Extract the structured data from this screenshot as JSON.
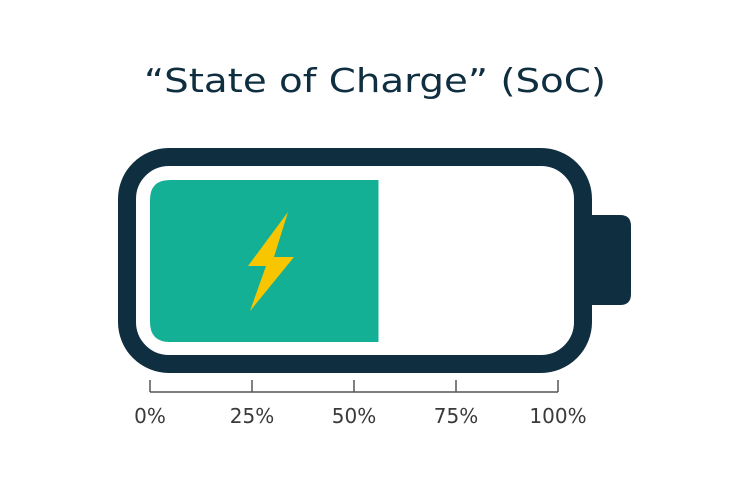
{
  "title": "“State of Charge” (SoC)",
  "battery": {
    "charge_percent": 56,
    "charging": true,
    "icon": "lightning-bolt-icon"
  },
  "scale": {
    "ticks": [
      {
        "value": 0,
        "label": "0%"
      },
      {
        "value": 25,
        "label": "25%"
      },
      {
        "value": 50,
        "label": "50%"
      },
      {
        "value": 75,
        "label": "75%"
      },
      {
        "value": 100,
        "label": "100%"
      }
    ]
  },
  "colors": {
    "outline": "#0f2e40",
    "fill": "#14b095",
    "bolt": "#f7c600",
    "axis": "#555555"
  }
}
